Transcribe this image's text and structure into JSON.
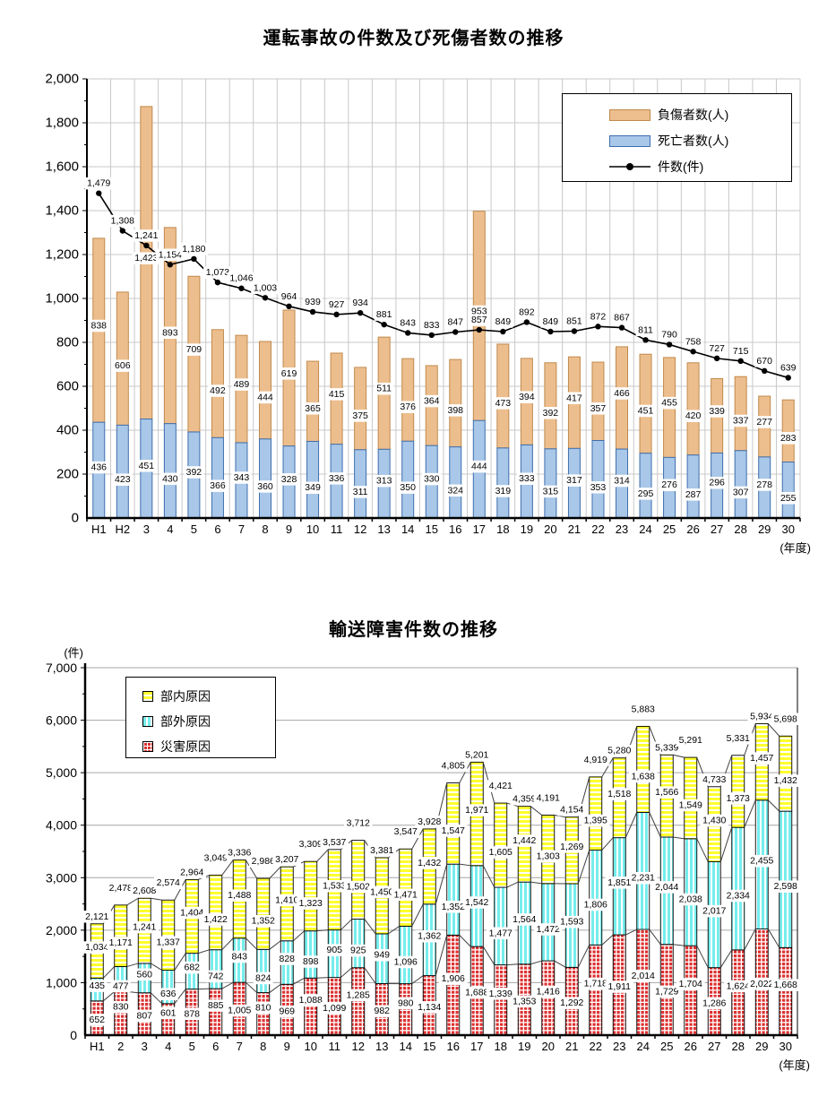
{
  "chart_data": [
    {
      "type": "bar",
      "subtype": "stacked-bars-with-line",
      "title": "運転事故の件数及び死傷者数の推移",
      "xlabel": "(年度)",
      "ylim": [
        0,
        2000
      ],
      "ytick_step": 200,
      "grid": true,
      "legend_position": "top-right",
      "categories": [
        "H1",
        "H2",
        "3",
        "4",
        "5",
        "6",
        "7",
        "8",
        "9",
        "10",
        "11",
        "12",
        "13",
        "14",
        "15",
        "16",
        "17",
        "18",
        "19",
        "20",
        "21",
        "22",
        "23",
        "24",
        "25",
        "26",
        "27",
        "28",
        "29",
        "30"
      ],
      "series": [
        {
          "name": "死亡者数(人)",
          "type": "bar",
          "color": "#A9C7E8",
          "border": "#3E6FAE",
          "values": [
            436,
            423,
            451,
            430,
            392,
            366,
            343,
            360,
            328,
            349,
            336,
            311,
            313,
            350,
            330,
            324,
            444,
            319,
            333,
            315,
            317,
            353,
            314,
            295,
            276,
            287,
            296,
            307,
            278,
            255
          ]
        },
        {
          "name": "負傷者数(人)",
          "type": "bar",
          "color": "#EDBE8D",
          "border": "#C08A4D",
          "values": [
            838,
            606,
            1423,
            893,
            709,
            492,
            489,
            444,
            619,
            365,
            415,
            375,
            511,
            376,
            364,
            398,
            953,
            473,
            394,
            392,
            417,
            357,
            466,
            451,
            455,
            420,
            339,
            337,
            277,
            283
          ]
        },
        {
          "name": "件数(件)",
          "type": "line",
          "color": "#000000",
          "values": [
            1479,
            1308,
            1241,
            1154,
            1180,
            1073,
            1046,
            1003,
            964,
            939,
            927,
            934,
            881,
            843,
            833,
            847,
            857,
            849,
            892,
            849,
            851,
            872,
            867,
            811,
            790,
            758,
            727,
            715,
            670,
            639
          ]
        }
      ]
    },
    {
      "type": "bar",
      "subtype": "stacked",
      "title": "輸送障害件数の推移",
      "xlabel": "(年度)",
      "ylabel": "(件)",
      "ylim": [
        0,
        7000
      ],
      "ytick_step": 1000,
      "grid": true,
      "legend_position": "top-left",
      "categories": [
        "H1",
        "2",
        "3",
        "4",
        "5",
        "6",
        "7",
        "8",
        "9",
        "10",
        "11",
        "12",
        "13",
        "14",
        "15",
        "16",
        "17",
        "18",
        "19",
        "20",
        "21",
        "22",
        "23",
        "24",
        "25",
        "26",
        "27",
        "28",
        "29",
        "30"
      ],
      "series": [
        {
          "name": "災害原因",
          "type": "bar",
          "color": "#DD2F2F",
          "pattern": "check",
          "values": [
            652,
            830,
            807,
            601,
            878,
            885,
            1005,
            810,
            969,
            1088,
            1099,
            1285,
            982,
            980,
            1134,
            1906,
            1688,
            1339,
            1353,
            1416,
            1292,
            1718,
            1911,
            2014,
            1729,
            1704,
            1286,
            1624,
            2022,
            1668
          ]
        },
        {
          "name": "部外原因",
          "type": "bar",
          "color": "#76EDED",
          "pattern": "vstripe",
          "values": [
            435,
            477,
            560,
            636,
            682,
            742,
            843,
            824,
            828,
            898,
            905,
            925,
            949,
            1096,
            1362,
            1352,
            1542,
            1477,
            1564,
            1472,
            1593,
            1806,
            1851,
            2231,
            2044,
            2038,
            2017,
            2334,
            2455,
            2598
          ]
        },
        {
          "name": "部内原因",
          "type": "bar",
          "color": "#FFFF2E",
          "pattern": "hstripe",
          "values": [
            1034,
            1171,
            1241,
            1337,
            1404,
            1422,
            1488,
            1352,
            1410,
            1323,
            1533,
            1502,
            1450,
            1471,
            1432,
            1547,
            1971,
            1605,
            1442,
            1303,
            1269,
            1395,
            1518,
            1638,
            1566,
            1549,
            1430,
            1373,
            1457,
            1432
          ]
        }
      ],
      "totals": [
        2121,
        2478,
        2608,
        2574,
        2964,
        3049,
        3336,
        2986,
        3207,
        3309,
        3537,
        3712,
        3381,
        3547,
        3928,
        4805,
        5201,
        4421,
        4359,
        4191,
        4154,
        4919,
        5280,
        5883,
        5339,
        5291,
        4733,
        5331,
        5934,
        5698
      ]
    }
  ]
}
